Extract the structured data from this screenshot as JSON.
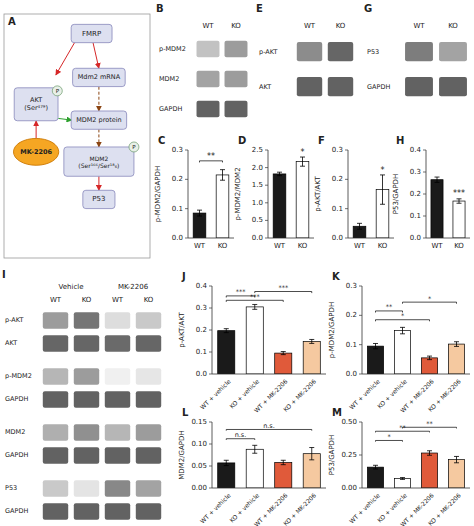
{
  "chart_data": [
    {
      "type": "diagram",
      "title": "A",
      "annotations": [
        "FMRP",
        "Mdm2 mRNA",
        "MDM2 protein",
        "AKT\n(Ser⁴⁷⁹)",
        "P",
        "MDM2\n(Ser¹⁶⁶/Ser¹⁸₆)",
        "P",
        "P53",
        "MK-2206"
      ]
    },
    {
      "type": "heatmap",
      "title": "B",
      "x": [
        "WT",
        "KO"
      ],
      "categories": [
        "p-MDM2",
        "MDM2",
        "GAPDH"
      ],
      "cells": [
        [
          0.32,
          0.52
        ],
        [
          0.48,
          0.52
        ],
        [
          0.82,
          0.82
        ]
      ]
    },
    {
      "type": "heatmap",
      "title": "E",
      "x": [
        "WT",
        "KO"
      ],
      "categories": [
        "p-AKT",
        "AKT"
      ],
      "cells": [
        [
          0.6,
          0.8
        ],
        [
          0.82,
          0.82
        ]
      ]
    },
    {
      "type": "heatmap",
      "title": "G",
      "x": [
        "WT",
        "KO"
      ],
      "categories": [
        "P53",
        "GAPDH"
      ],
      "cells": [
        [
          0.68,
          0.48
        ],
        [
          0.82,
          0.82
        ]
      ]
    },
    {
      "type": "bar",
      "title": "C",
      "categories": [
        "WT",
        "KO"
      ],
      "values": [
        0.085,
        0.215
      ],
      "errors": [
        0.01,
        0.018
      ],
      "ylabel": "p-MDM2/GAPDH",
      "ylim": [
        0,
        0.3
      ],
      "yticks": [
        {
          "value": 0,
          "label": "0.0"
        },
        0.1,
        0.2,
        0.3
      ],
      "colors": [
        "#1a1a1a",
        "#ffffff"
      ],
      "annotations": [
        {
          "text": "**",
          "from": 0,
          "to": 1
        }
      ]
    },
    {
      "type": "bar",
      "title": "D",
      "categories": [
        "WT",
        "KO"
      ],
      "values": [
        1.82,
        2.17
      ],
      "errors": [
        0.05,
        0.13
      ],
      "ylabel": "p-MDM2/MDM2",
      "ylim": [
        0,
        2.5
      ],
      "yticks": [
        {
          "value": 0,
          "label": "0.0"
        },
        0.5,
        {
          "value": 1,
          "label": "1.0"
        },
        1.5,
        {
          "value": 2,
          "label": "2.0"
        },
        2.5
      ],
      "colors": [
        "#1a1a1a",
        "#ffffff"
      ],
      "annotations": [
        {
          "text": "*",
          "at": 1
        }
      ]
    },
    {
      "type": "bar",
      "title": "F",
      "categories": [
        "WT",
        "KO"
      ],
      "values": [
        0.04,
        0.165
      ],
      "errors": [
        0.01,
        0.05
      ],
      "ylabel": "p-AKT/AKT",
      "ylim": [
        0,
        0.3
      ],
      "yticks": [
        {
          "value": 0,
          "label": "0.0"
        },
        0.1,
        0.2,
        0.3
      ],
      "colors": [
        "#1a1a1a",
        "#ffffff"
      ],
      "annotations": [
        {
          "text": "*",
          "at": 1
        }
      ]
    },
    {
      "type": "bar",
      "title": "H",
      "categories": [
        "WT",
        "KO"
      ],
      "values": [
        0.265,
        0.168
      ],
      "errors": [
        0.012,
        0.01
      ],
      "ylabel": "P53/GAPDH",
      "ylim": [
        0,
        0.4
      ],
      "yticks": [
        {
          "value": 0,
          "label": "0.0"
        },
        0.1,
        0.2,
        0.3,
        0.4
      ],
      "colors": [
        "#1a1a1a",
        "#ffffff"
      ],
      "annotations": [
        {
          "text": "***",
          "at": 1
        }
      ]
    },
    {
      "type": "heatmap",
      "title": "I",
      "annotations": [
        "Vehicle",
        "MK-2206"
      ],
      "x": [
        "WT",
        "KO",
        "WT",
        "KO"
      ],
      "categories": [
        "p-AKT",
        "AKT",
        "p-MDM2",
        "GAPDH",
        "MDM2",
        "GAPDH",
        "P53",
        "GAPDH"
      ],
      "cells": [
        [
          0.52,
          0.72,
          0.18,
          0.28
        ],
        [
          0.8,
          0.8,
          0.78,
          0.8
        ],
        [
          0.38,
          0.52,
          0.08,
          0.13
        ],
        [
          0.82,
          0.82,
          0.82,
          0.82
        ],
        [
          0.42,
          0.58,
          0.38,
          0.52
        ],
        [
          0.82,
          0.82,
          0.82,
          0.82
        ],
        [
          0.28,
          0.14,
          0.62,
          0.48
        ],
        [
          0.82,
          0.82,
          0.82,
          0.82
        ]
      ]
    },
    {
      "type": "bar",
      "title": "J",
      "categories": [
        "WT + vehicle",
        "KO + vehicle",
        "WT + MK-2206",
        "KO + MK-2206"
      ],
      "values": [
        0.197,
        0.305,
        0.095,
        0.148
      ],
      "errors": [
        0.009,
        0.011,
        0.007,
        0.009
      ],
      "ylabel": "p-AKT/AKT",
      "ylim": [
        0,
        0.4
      ],
      "yticks": [
        {
          "value": 0,
          "label": "0.0"
        },
        0.1,
        0.2,
        0.3,
        0.4
      ],
      "colors": [
        "#1a1a1a",
        "#ffffff",
        "#e05a3a",
        "#f5c9a0"
      ],
      "annotations": [
        {
          "text": "***",
          "from": 0,
          "to": 2,
          "y": 0.335
        },
        {
          "text": "***",
          "from": 0,
          "to": 1,
          "y": 0.355
        },
        {
          "text": "***",
          "from": 1,
          "to": 3,
          "y": 0.375
        }
      ]
    },
    {
      "type": "bar",
      "title": "K",
      "categories": [
        "WT + vehicle",
        "KO + vehicle",
        "WT + MK-2206",
        "KO + MK-2206"
      ],
      "values": [
        0.095,
        0.148,
        0.055,
        0.102
      ],
      "errors": [
        0.009,
        0.011,
        0.006,
        0.008
      ],
      "ylabel": "p-MDM2/GAPDH",
      "ylim": [
        0,
        0.3
      ],
      "yticks": [
        {
          "value": 0,
          "label": "0.0"
        },
        0.1,
        0.2,
        0.3
      ],
      "colors": [
        "#1a1a1a",
        "#ffffff",
        "#e05a3a",
        "#f5c9a0"
      ],
      "annotations": [
        {
          "text": "*",
          "from": 0,
          "to": 2,
          "y": 0.185
        },
        {
          "text": "**",
          "from": 0,
          "to": 1,
          "y": 0.215
        },
        {
          "text": "*",
          "from": 1,
          "to": 3,
          "y": 0.245
        }
      ]
    },
    {
      "type": "bar",
      "title": "L",
      "categories": [
        "WT + vehicle",
        "KO + vehicle",
        "WT + MK-2206",
        "KO + MK-2206"
      ],
      "values": [
        0.057,
        0.088,
        0.058,
        0.078
      ],
      "errors": [
        0.006,
        0.009,
        0.005,
        0.014
      ],
      "ylabel": "MDM2/GAPDH",
      "ylim": [
        0,
        0.15
      ],
      "yticks": [
        {
          "value": 0,
          "label": "0.00"
        },
        0.05,
        {
          "value": 0.1,
          "label": "0.10"
        },
        0.15
      ],
      "colors": [
        "#1a1a1a",
        "#ffffff",
        "#e05a3a",
        "#f5c9a0"
      ],
      "annotations": [
        {
          "text": "n.s.",
          "from": 0,
          "to": 1,
          "y": 0.112
        },
        {
          "text": "n.s.",
          "from": 0,
          "to": 3,
          "y": 0.133
        }
      ]
    },
    {
      "type": "bar",
      "title": "M",
      "categories": [
        "WT + vehicle",
        "KO + vehicle",
        "WT + MK-2206",
        "KO + MK-2206"
      ],
      "values": [
        0.158,
        0.072,
        0.265,
        0.215
      ],
      "errors": [
        0.014,
        0.007,
        0.017,
        0.024
      ],
      "ylabel": "P53/GAPDH",
      "ylim": [
        0,
        0.5
      ],
      "yticks": [
        {
          "value": 0,
          "label": "0.00"
        },
        0.25,
        {
          "value": 0.5,
          "label": "0.50"
        }
      ],
      "colors": [
        "#1a1a1a",
        "#ffffff",
        "#e05a3a",
        "#f5c9a0"
      ],
      "annotations": [
        {
          "text": "*",
          "from": 0,
          "to": 1,
          "y": 0.36
        },
        {
          "text": "**",
          "from": 0,
          "to": 2,
          "y": 0.43
        },
        {
          "text": "**",
          "from": 1,
          "to": 3,
          "y": 0.46
        }
      ]
    }
  ]
}
